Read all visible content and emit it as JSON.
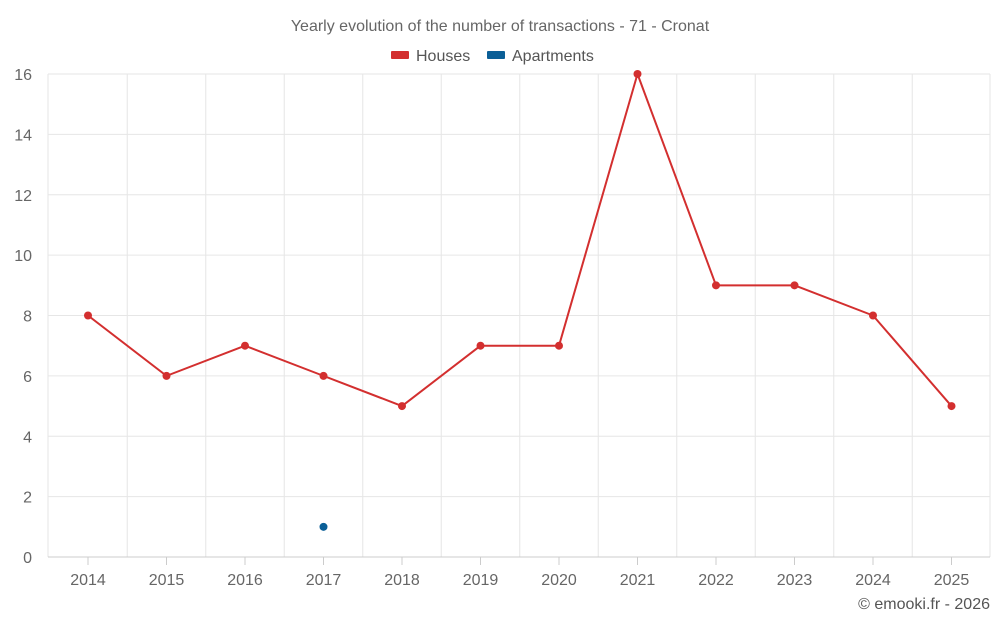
{
  "chart_data": {
    "type": "line",
    "title": "Yearly evolution of the number of transactions - 71 - Cronat",
    "categories": [
      "2014",
      "2015",
      "2016",
      "2017",
      "2018",
      "2019",
      "2020",
      "2021",
      "2022",
      "2023",
      "2024",
      "2025"
    ],
    "yticks": [
      "0",
      "2",
      "4",
      "6",
      "8",
      "10",
      "12",
      "14",
      "16"
    ],
    "ylim": [
      0,
      16
    ],
    "grid": true,
    "legend_position": "top-center",
    "series": [
      {
        "name": "Houses",
        "color": "#d32f2f",
        "values": [
          8,
          6,
          7,
          6,
          5,
          7,
          7,
          16,
          9,
          9,
          8,
          5
        ]
      },
      {
        "name": "Apartments",
        "color": "#0b5f97",
        "values": [
          null,
          null,
          null,
          1,
          null,
          null,
          null,
          null,
          null,
          null,
          null,
          null
        ]
      }
    ]
  },
  "credit": "© emooki.fr - 2026"
}
